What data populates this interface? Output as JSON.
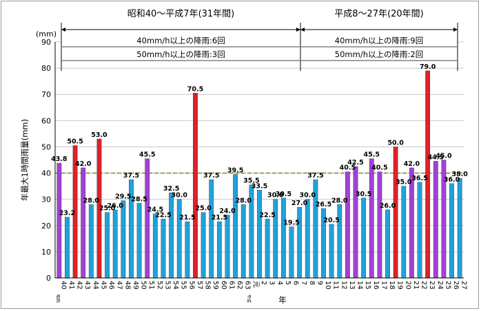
{
  "chart_data": {
    "type": "bar",
    "unit_label": "(mm)",
    "ylabel": "年最大1時間雨量(mm)",
    "xlabel": "年",
    "ylim": [
      0,
      90
    ],
    "yticks": [
      0,
      10,
      20,
      30,
      40,
      50,
      60,
      70,
      80,
      90
    ],
    "grid": true,
    "era_markers": [
      "昭和",
      "平成"
    ],
    "threshold": 40,
    "colors": {
      "normal": "#1fa2dc",
      "over40": "#a340d8",
      "over50": "#e0202a",
      "threshold_line": "#8a8a3a"
    },
    "periods": [
      {
        "title": "昭和40～平成7年(31年間)",
        "lines": [
          "40mm/h以上の降雨:6回",
          "50mm/h以上の降雨:3回"
        ]
      },
      {
        "title": "平成8～27年(20年間)",
        "lines": [
          "40mm/h以上の降雨:9回",
          "50mm/h以上の降雨:2回"
        ]
      }
    ],
    "categories": [
      "40",
      "41",
      "42",
      "43",
      "44",
      "45",
      "46",
      "47",
      "48",
      "49",
      "50",
      "51",
      "52",
      "53",
      "54",
      "55",
      "56",
      "57",
      "58",
      "59",
      "60",
      "61",
      "62",
      "63",
      "元",
      "2",
      "3",
      "4",
      "5",
      "6",
      "7",
      "8",
      "9",
      "10",
      "11",
      "12",
      "13",
      "14",
      "15",
      "16",
      "17",
      "18",
      "19",
      "20",
      "21",
      "22",
      "23",
      "24",
      "25",
      "26",
      "27"
    ],
    "values": [
      43.8,
      23.2,
      50.5,
      42.0,
      28.0,
      53.0,
      25.0,
      26.0,
      29.5,
      37.5,
      28.5,
      45.5,
      24.5,
      22.5,
      32.5,
      30.0,
      21.5,
      70.5,
      25.0,
      37.5,
      21.5,
      24.0,
      39.5,
      28.0,
      35.5,
      33.5,
      22.5,
      30.0,
      30.5,
      19.5,
      27.0,
      30.0,
      37.5,
      26.5,
      20.5,
      28.0,
      40.5,
      42.5,
      30.5,
      45.5,
      40.5,
      26.0,
      50.0,
      35.0,
      42.0,
      36.5,
      79.0,
      44.5,
      45.0,
      36.0,
      38.0
    ],
    "labels": [
      "43.8",
      "23.2",
      "50.5",
      "42.0",
      "28.0",
      "53.0",
      "25.0",
      "26.0",
      "29.5",
      "37.5",
      "28.5",
      "45.5",
      "24.5",
      "22.5",
      "32.5",
      "30.0",
      "21.5",
      "70.5",
      "25.0",
      "37.5",
      "21.5",
      "24.0",
      "39.5",
      "28.0",
      "35.5",
      "33.5",
      "22.5",
      "30.0",
      "30.5",
      "19.5",
      "27.0",
      "30.0",
      "37.5",
      "26.5",
      "20.5",
      "28.0",
      "40.5",
      "42.5",
      "30.5",
      "45.5",
      "40.5",
      "26.0",
      "50.0",
      "35.0",
      "42.0",
      "36.5",
      "79.0",
      "44.5",
      "45.0",
      "36.0",
      "38.0"
    ]
  }
}
